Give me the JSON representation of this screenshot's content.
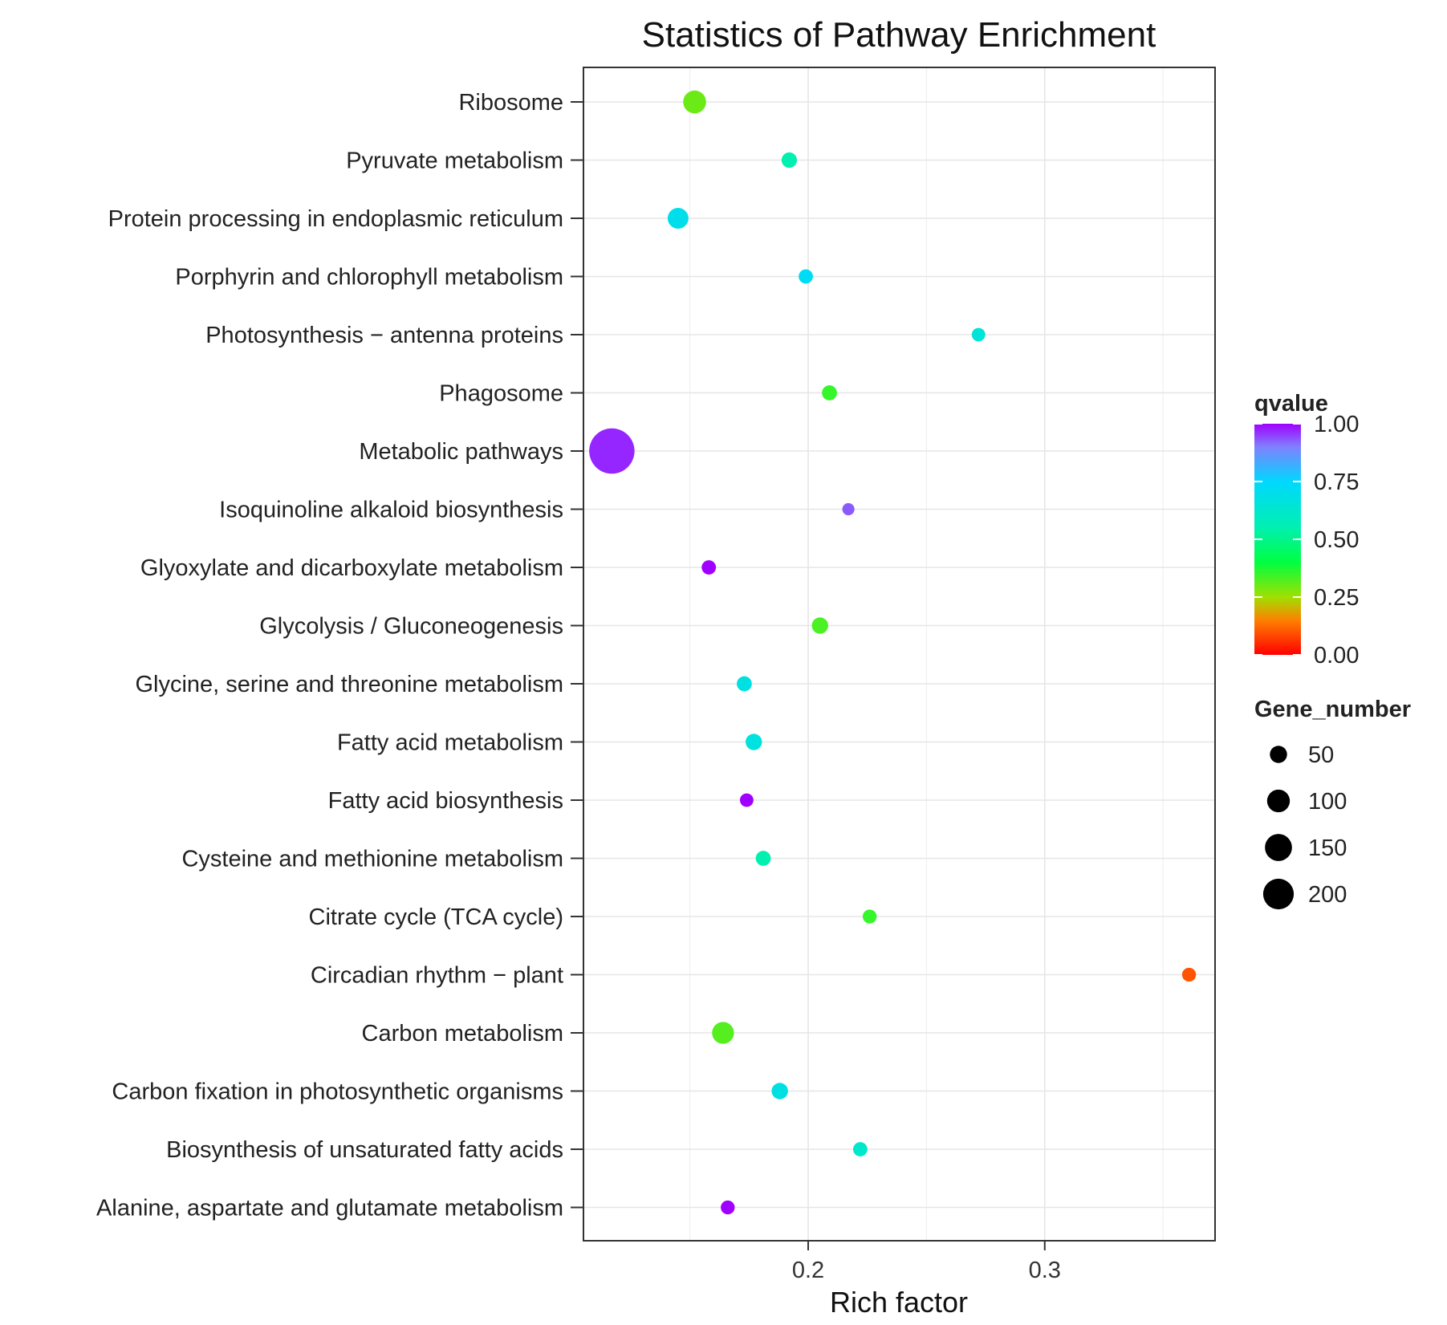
{
  "chart_data": {
    "type": "scatter",
    "title": "Statistics of Pathway Enrichment",
    "xlabel": "Rich factor",
    "ylabel": "",
    "xlim": [
      0.105,
      0.372
    ],
    "xticks": [
      0.2,
      0.3
    ],
    "xtick_labels": [
      "0.2",
      "0.3"
    ],
    "grid": true,
    "categories": [
      "Ribosome",
      "Pyruvate metabolism",
      "Protein processing in endoplasmic reticulum",
      "Porphyrin and chlorophyll metabolism",
      "Photosynthesis − antenna proteins",
      "Phagosome",
      "Metabolic pathways",
      "Isoquinoline alkaloid biosynthesis",
      "Glyoxylate and dicarboxylate metabolism",
      "Glycolysis / Gluconeogenesis",
      "Glycine, serine and threonine metabolism",
      "Fatty acid metabolism",
      "Fatty acid biosynthesis",
      "Cysteine and methionine metabolism",
      "Citrate cycle (TCA cycle)",
      "Circadian rhythm − plant",
      "Carbon metabolism",
      "Carbon fixation in photosynthetic organisms",
      "Biosynthesis of unsaturated fatty acids",
      "Alanine, aspartate and glutamate metabolism"
    ],
    "points": [
      {
        "pathway": "Ribosome",
        "rich_factor": 0.152,
        "qvalue": 0.3,
        "gene_number": 45
      },
      {
        "pathway": "Pyruvate metabolism",
        "rich_factor": 0.192,
        "qvalue": 0.55,
        "gene_number": 15
      },
      {
        "pathway": "Protein processing in endoplasmic reticulum",
        "rich_factor": 0.145,
        "qvalue": 0.7,
        "gene_number": 35
      },
      {
        "pathway": "Porphyrin and chlorophyll metabolism",
        "rich_factor": 0.199,
        "qvalue": 0.72,
        "gene_number": 12
      },
      {
        "pathway": "Photosynthesis − antenna proteins",
        "rich_factor": 0.272,
        "qvalue": 0.65,
        "gene_number": 10
      },
      {
        "pathway": "Phagosome",
        "rich_factor": 0.209,
        "qvalue": 0.35,
        "gene_number": 14
      },
      {
        "pathway": "Metabolic pathways",
        "rich_factor": 0.117,
        "qvalue": 0.97,
        "gene_number": 230
      },
      {
        "pathway": "Isoquinoline alkaloid biosynthesis",
        "rich_factor": 0.217,
        "qvalue": 0.93,
        "gene_number": 7
      },
      {
        "pathway": "Glyoxylate and dicarboxylate metabolism",
        "rich_factor": 0.158,
        "qvalue": 1.0,
        "gene_number": 12
      },
      {
        "pathway": "Glycolysis / Gluconeogenesis",
        "rich_factor": 0.205,
        "qvalue": 0.33,
        "gene_number": 18
      },
      {
        "pathway": "Glycine, serine and threonine metabolism",
        "rich_factor": 0.173,
        "qvalue": 0.68,
        "gene_number": 14
      },
      {
        "pathway": "Fatty acid metabolism",
        "rich_factor": 0.177,
        "qvalue": 0.67,
        "gene_number": 18
      },
      {
        "pathway": "Fatty acid biosynthesis",
        "rich_factor": 0.174,
        "qvalue": 1.0,
        "gene_number": 10
      },
      {
        "pathway": "Cysteine and methionine metabolism",
        "rich_factor": 0.181,
        "qvalue": 0.55,
        "gene_number": 14
      },
      {
        "pathway": "Citrate cycle (TCA cycle)",
        "rich_factor": 0.226,
        "qvalue": 0.35,
        "gene_number": 11
      },
      {
        "pathway": "Circadian rhythm − plant",
        "rich_factor": 0.361,
        "qvalue": 0.1,
        "gene_number": 11
      },
      {
        "pathway": "Carbon metabolism",
        "rich_factor": 0.164,
        "qvalue": 0.32,
        "gene_number": 40
      },
      {
        "pathway": "Carbon fixation in photosynthetic organisms",
        "rich_factor": 0.188,
        "qvalue": 0.68,
        "gene_number": 18
      },
      {
        "pathway": "Biosynthesis of unsaturated fatty acids",
        "rich_factor": 0.222,
        "qvalue": 0.62,
        "gene_number": 12
      },
      {
        "pathway": "Alanine, aspartate and glutamate metabolism",
        "rich_factor": 0.166,
        "qvalue": 1.0,
        "gene_number": 11
      }
    ],
    "color_legend": {
      "title": "qvalue",
      "ticks": [
        1.0,
        0.75,
        0.5,
        0.25,
        0.0
      ],
      "tick_labels": [
        "1.00",
        "0.75",
        "0.50",
        "0.25",
        "0.00"
      ],
      "colorscale": [
        {
          "stop": 0.0,
          "color": "#ff0000"
        },
        {
          "stop": 0.15,
          "color": "#ff8000"
        },
        {
          "stop": 0.25,
          "color": "#a0e000"
        },
        {
          "stop": 0.4,
          "color": "#00ff40"
        },
        {
          "stop": 0.55,
          "color": "#00f0b0"
        },
        {
          "stop": 0.75,
          "color": "#00d8ff"
        },
        {
          "stop": 0.9,
          "color": "#8080ff"
        },
        {
          "stop": 1.0,
          "color": "#a000ff"
        }
      ]
    },
    "size_legend": {
      "title": "Gene_number",
      "values": [
        50,
        100,
        150,
        200
      ],
      "labels": [
        "50",
        "100",
        "150",
        "200"
      ]
    }
  }
}
